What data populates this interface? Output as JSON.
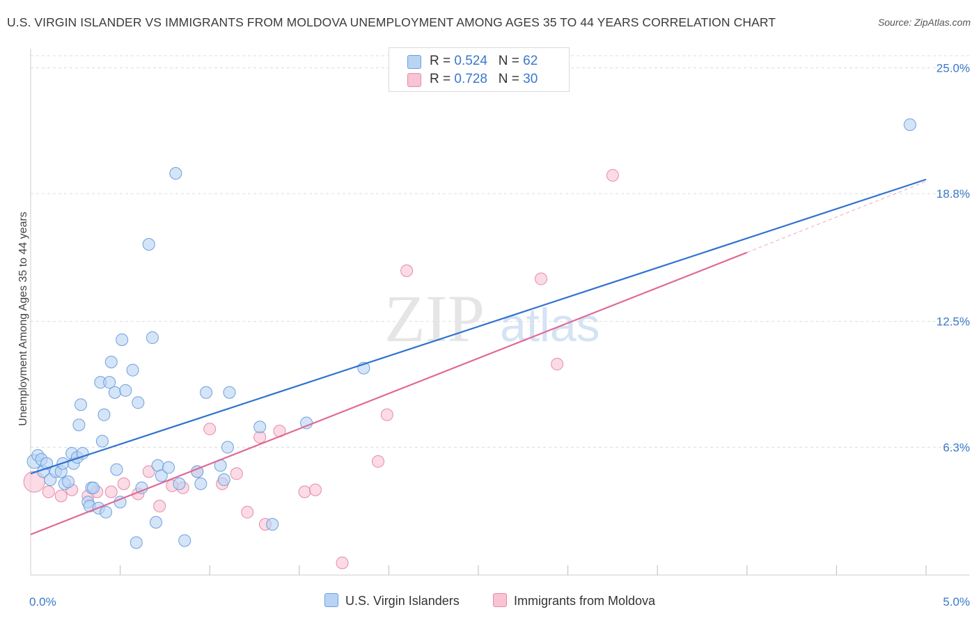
{
  "title": "U.S. VIRGIN ISLANDER VS IMMIGRANTS FROM MOLDOVA UNEMPLOYMENT AMONG AGES 35 TO 44 YEARS CORRELATION CHART",
  "source": "Source: ZipAtlas.com",
  "watermark": {
    "zip": "ZIP",
    "atlas": "atlas"
  },
  "legend": {
    "r_label": "R = ",
    "n_label": "N = ",
    "series1": {
      "r": "0.524",
      "n": "62"
    },
    "series2": {
      "r": "0.728",
      "n": "30"
    }
  },
  "colors": {
    "blue_fill": "#b8d3f3",
    "blue_stroke": "#6e9fdc",
    "blue_line": "#2f72cf",
    "pink_fill": "#f8c3d3",
    "pink_stroke": "#e48aa8",
    "pink_line": "#e06a95",
    "tick_text": "#3a78c9",
    "grid": "#dcdcdc"
  },
  "chart_data": {
    "type": "scatter",
    "title": "U.S. VIRGIN ISLANDER VS IMMIGRANTS FROM MOLDOVA UNEMPLOYMENT AMONG AGES 35 TO 44 YEARS CORRELATION CHART",
    "xlabel": "",
    "ylabel": "Unemployment Among Ages 35 to 44 years",
    "x_ticks": [
      "0.0%",
      "5.0%"
    ],
    "y_ticks": [
      "6.3%",
      "12.5%",
      "18.8%",
      "25.0%"
    ],
    "y_tick_values": [
      6.3,
      12.5,
      18.8,
      25.0
    ],
    "xlim": [
      0,
      5.0
    ],
    "ylim": [
      0,
      25.6
    ],
    "grid": "horizontal dashed",
    "legend_position": "top-center",
    "series": [
      {
        "name": "U.S. Virgin Islanders",
        "color": "#b8d3f3",
        "r": 0.524,
        "n": 62,
        "trend": {
          "x": [
            0.0,
            5.0
          ],
          "y": [
            5.0,
            19.5
          ]
        },
        "points": [
          {
            "x": 0.02,
            "y": 5.6,
            "s": 2
          },
          {
            "x": 0.04,
            "y": 5.9,
            "s": 1
          },
          {
            "x": 0.06,
            "y": 5.7,
            "s": 1
          },
          {
            "x": 0.07,
            "y": 5.1,
            "s": 1
          },
          {
            "x": 0.09,
            "y": 5.5,
            "s": 1
          },
          {
            "x": 0.11,
            "y": 4.7,
            "s": 1
          },
          {
            "x": 0.14,
            "y": 5.1,
            "s": 1
          },
          {
            "x": 0.17,
            "y": 5.1,
            "s": 1
          },
          {
            "x": 0.18,
            "y": 5.5,
            "s": 1
          },
          {
            "x": 0.19,
            "y": 4.5,
            "s": 1
          },
          {
            "x": 0.21,
            "y": 4.6,
            "s": 1
          },
          {
            "x": 0.23,
            "y": 6.0,
            "s": 1
          },
          {
            "x": 0.24,
            "y": 5.5,
            "s": 1
          },
          {
            "x": 0.26,
            "y": 5.8,
            "s": 1
          },
          {
            "x": 0.27,
            "y": 7.4,
            "s": 1
          },
          {
            "x": 0.28,
            "y": 8.4,
            "s": 1
          },
          {
            "x": 0.29,
            "y": 6.0,
            "s": 1
          },
          {
            "x": 0.32,
            "y": 3.6,
            "s": 1
          },
          {
            "x": 0.33,
            "y": 3.4,
            "s": 1
          },
          {
            "x": 0.34,
            "y": 4.3,
            "s": 1
          },
          {
            "x": 0.35,
            "y": 4.3,
            "s": 1
          },
          {
            "x": 0.38,
            "y": 3.3,
            "s": 1
          },
          {
            "x": 0.39,
            "y": 9.5,
            "s": 1
          },
          {
            "x": 0.4,
            "y": 6.6,
            "s": 1
          },
          {
            "x": 0.41,
            "y": 7.9,
            "s": 1
          },
          {
            "x": 0.42,
            "y": 3.1,
            "s": 1
          },
          {
            "x": 0.44,
            "y": 9.5,
            "s": 1
          },
          {
            "x": 0.45,
            "y": 10.5,
            "s": 1
          },
          {
            "x": 0.47,
            "y": 9.0,
            "s": 1
          },
          {
            "x": 0.48,
            "y": 5.2,
            "s": 1
          },
          {
            "x": 0.5,
            "y": 3.6,
            "s": 1
          },
          {
            "x": 0.51,
            "y": 11.6,
            "s": 1
          },
          {
            "x": 0.53,
            "y": 9.1,
            "s": 1
          },
          {
            "x": 0.57,
            "y": 10.1,
            "s": 1
          },
          {
            "x": 0.59,
            "y": 1.6,
            "s": 1
          },
          {
            "x": 0.6,
            "y": 8.5,
            "s": 1
          },
          {
            "x": 0.62,
            "y": 4.3,
            "s": 1
          },
          {
            "x": 0.66,
            "y": 16.3,
            "s": 1
          },
          {
            "x": 0.68,
            "y": 11.7,
            "s": 1
          },
          {
            "x": 0.7,
            "y": 2.6,
            "s": 1
          },
          {
            "x": 0.71,
            "y": 5.4,
            "s": 1
          },
          {
            "x": 0.73,
            "y": 4.9,
            "s": 1
          },
          {
            "x": 0.77,
            "y": 5.3,
            "s": 1
          },
          {
            "x": 0.81,
            "y": 19.8,
            "s": 1
          },
          {
            "x": 0.83,
            "y": 4.5,
            "s": 1
          },
          {
            "x": 0.86,
            "y": 1.7,
            "s": 1
          },
          {
            "x": 0.93,
            "y": 5.1,
            "s": 1
          },
          {
            "x": 0.95,
            "y": 4.5,
            "s": 1
          },
          {
            "x": 0.98,
            "y": 9.0,
            "s": 1
          },
          {
            "x": 1.06,
            "y": 5.4,
            "s": 1
          },
          {
            "x": 1.08,
            "y": 4.7,
            "s": 1
          },
          {
            "x": 1.1,
            "y": 6.3,
            "s": 1
          },
          {
            "x": 1.11,
            "y": 9.0,
            "s": 1
          },
          {
            "x": 1.28,
            "y": 7.3,
            "s": 1
          },
          {
            "x": 1.35,
            "y": 2.5,
            "s": 1
          },
          {
            "x": 1.54,
            "y": 7.5,
            "s": 1
          },
          {
            "x": 1.86,
            "y": 10.2,
            "s": 1
          },
          {
            "x": 4.91,
            "y": 22.2,
            "s": 1
          }
        ]
      },
      {
        "name": "Immigrants from Moldova",
        "color": "#f8c3d3",
        "r": 0.728,
        "n": 30,
        "trend": {
          "x": [
            0.0,
            4.0
          ],
          "y": [
            2.0,
            15.9
          ]
        },
        "trend_dashed": {
          "x": [
            4.0,
            5.0
          ],
          "y": [
            15.9,
            19.4
          ]
        },
        "points": [
          {
            "x": 0.02,
            "y": 4.6,
            "s": 3
          },
          {
            "x": 0.1,
            "y": 4.1,
            "s": 1
          },
          {
            "x": 0.17,
            "y": 3.9,
            "s": 1
          },
          {
            "x": 0.23,
            "y": 4.2,
            "s": 1
          },
          {
            "x": 0.32,
            "y": 3.9,
            "s": 1
          },
          {
            "x": 0.37,
            "y": 4.1,
            "s": 1
          },
          {
            "x": 0.45,
            "y": 4.1,
            "s": 1
          },
          {
            "x": 0.52,
            "y": 4.5,
            "s": 1
          },
          {
            "x": 0.6,
            "y": 4.0,
            "s": 1
          },
          {
            "x": 0.66,
            "y": 5.1,
            "s": 1
          },
          {
            "x": 0.72,
            "y": 3.4,
            "s": 1
          },
          {
            "x": 0.79,
            "y": 4.4,
            "s": 1
          },
          {
            "x": 0.85,
            "y": 4.3,
            "s": 1
          },
          {
            "x": 0.93,
            "y": 5.1,
            "s": 1
          },
          {
            "x": 1.0,
            "y": 7.2,
            "s": 1
          },
          {
            "x": 1.07,
            "y": 4.5,
            "s": 1
          },
          {
            "x": 1.15,
            "y": 5.0,
            "s": 1
          },
          {
            "x": 1.21,
            "y": 3.1,
            "s": 1
          },
          {
            "x": 1.28,
            "y": 6.8,
            "s": 1
          },
          {
            "x": 1.31,
            "y": 2.5,
            "s": 1
          },
          {
            "x": 1.39,
            "y": 7.1,
            "s": 1
          },
          {
            "x": 1.53,
            "y": 4.1,
            "s": 1
          },
          {
            "x": 1.59,
            "y": 4.2,
            "s": 1
          },
          {
            "x": 1.74,
            "y": 0.6,
            "s": 1
          },
          {
            "x": 1.94,
            "y": 5.6,
            "s": 1
          },
          {
            "x": 1.99,
            "y": 7.9,
            "s": 1
          },
          {
            "x": 2.1,
            "y": 15.0,
            "s": 1
          },
          {
            "x": 2.85,
            "y": 14.6,
            "s": 1
          },
          {
            "x": 2.94,
            "y": 10.4,
            "s": 1
          },
          {
            "x": 3.25,
            "y": 19.7,
            "s": 1
          }
        ]
      }
    ]
  }
}
